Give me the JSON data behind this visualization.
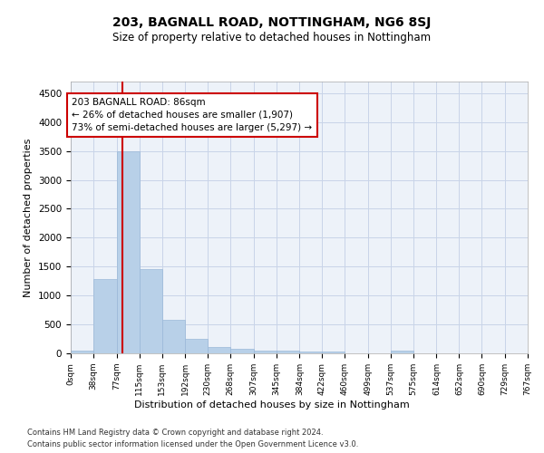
{
  "title": "203, BAGNALL ROAD, NOTTINGHAM, NG6 8SJ",
  "subtitle": "Size of property relative to detached houses in Nottingham",
  "xlabel": "Distribution of detached houses by size in Nottingham",
  "ylabel": "Number of detached properties",
  "bar_color": "#b8d0e8",
  "bar_edge_color": "#9ab8d8",
  "background_color": "#edf2f9",
  "grid_color": "#c8d4e8",
  "annotation_text": "203 BAGNALL ROAD: 86sqm\n← 26% of detached houses are smaller (1,907)\n73% of semi-detached houses are larger (5,297) →",
  "vline_x": 86,
  "vline_color": "#cc0000",
  "annotation_box_color": "#ffffff",
  "annotation_box_edge": "#cc0000",
  "ylim": [
    0,
    4700
  ],
  "yticks": [
    0,
    500,
    1000,
    1500,
    2000,
    2500,
    3000,
    3500,
    4000,
    4500
  ],
  "bin_edges": [
    0,
    38,
    77,
    115,
    153,
    192,
    230,
    268,
    307,
    345,
    384,
    422,
    460,
    499,
    537,
    575,
    614,
    652,
    690,
    729,
    767
  ],
  "bin_values": [
    40,
    1280,
    3500,
    1460,
    580,
    245,
    110,
    80,
    50,
    40,
    35,
    30,
    0,
    0,
    50,
    0,
    0,
    0,
    0,
    0
  ],
  "footer_line1": "Contains HM Land Registry data © Crown copyright and database right 2024.",
  "footer_line2": "Contains public sector information licensed under the Open Government Licence v3.0."
}
